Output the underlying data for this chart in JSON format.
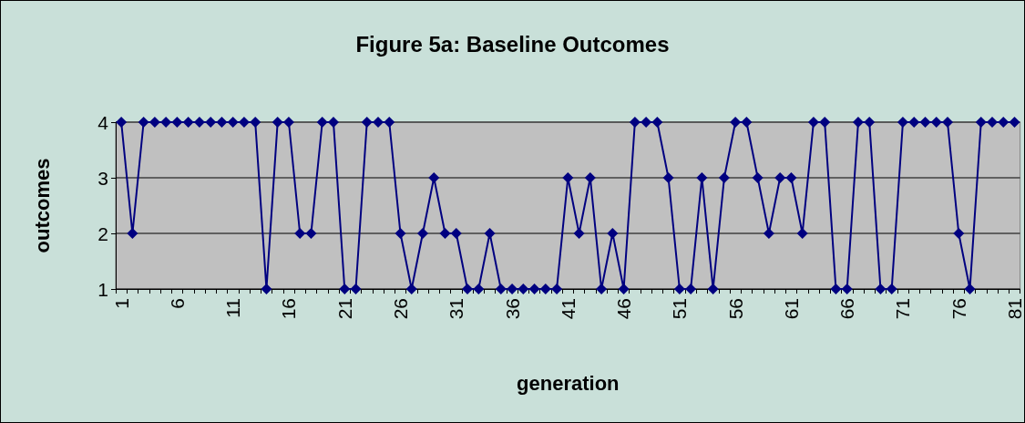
{
  "chart_data": {
    "type": "line",
    "title": "Figure 5a: Baseline Outcomes",
    "xlabel": "generation",
    "ylabel": "outcomes",
    "categories": [
      "1",
      null,
      null,
      null,
      null,
      "6",
      null,
      null,
      null,
      null,
      "11",
      null,
      null,
      null,
      null,
      "16",
      null,
      null,
      null,
      null,
      "21",
      null,
      null,
      null,
      null,
      "26",
      null,
      null,
      null,
      null,
      "31",
      null,
      null,
      null,
      null,
      "36",
      null,
      null,
      null,
      null,
      "41",
      null,
      null,
      null,
      null,
      "46",
      null,
      null,
      null,
      null,
      "51",
      null,
      null,
      null,
      null,
      "56",
      null,
      null,
      null,
      null,
      "61",
      null,
      null,
      null,
      null,
      "66",
      null,
      null,
      null,
      null,
      "71",
      null,
      null,
      null,
      null,
      "76",
      null,
      null,
      null,
      null,
      "81"
    ],
    "series": [
      {
        "color": "#000080",
        "values": [
          4,
          2,
          4,
          4,
          4,
          4,
          4,
          4,
          4,
          4,
          4,
          4,
          4,
          1,
          4,
          4,
          2,
          2,
          4,
          4,
          1,
          1,
          4,
          4,
          4,
          2,
          1,
          2,
          3,
          2,
          2,
          1,
          1,
          2,
          1,
          1,
          1,
          1,
          1,
          1,
          3,
          2,
          3,
          1,
          2,
          1,
          4,
          4,
          4,
          3,
          1,
          1,
          3,
          1,
          3,
          4,
          4,
          3,
          2,
          3,
          3,
          2,
          4,
          4,
          1,
          1,
          4,
          4,
          1,
          1,
          4,
          4,
          4,
          4,
          4,
          2,
          1,
          4,
          4,
          4,
          4
        ]
      }
    ],
    "ylim": [
      1,
      4
    ],
    "yticks": [
      1,
      2,
      3,
      4
    ],
    "grid": "y",
    "marker": "diamond",
    "line_style": "solid"
  }
}
